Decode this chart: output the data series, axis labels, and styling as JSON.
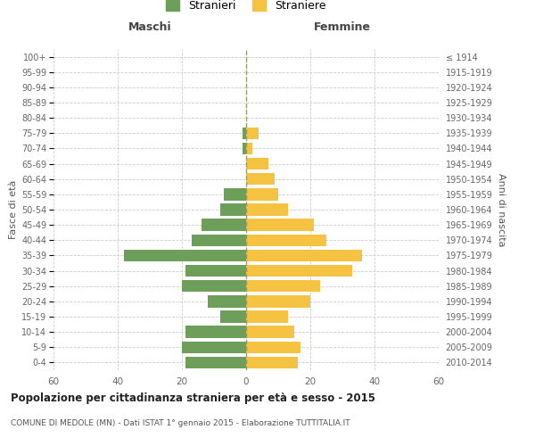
{
  "age_groups": [
    "0-4",
    "5-9",
    "10-14",
    "15-19",
    "20-24",
    "25-29",
    "30-34",
    "35-39",
    "40-44",
    "45-49",
    "50-54",
    "55-59",
    "60-64",
    "65-69",
    "70-74",
    "75-79",
    "80-84",
    "85-89",
    "90-94",
    "95-99",
    "100+"
  ],
  "birth_years": [
    "2010-2014",
    "2005-2009",
    "2000-2004",
    "1995-1999",
    "1990-1994",
    "1985-1989",
    "1980-1984",
    "1975-1979",
    "1970-1974",
    "1965-1969",
    "1960-1964",
    "1955-1959",
    "1950-1954",
    "1945-1949",
    "1940-1944",
    "1935-1939",
    "1930-1934",
    "1925-1929",
    "1920-1924",
    "1915-1919",
    "≤ 1914"
  ],
  "maschi": [
    19,
    20,
    19,
    8,
    12,
    20,
    19,
    38,
    17,
    14,
    8,
    7,
    0,
    0,
    1,
    1,
    0,
    0,
    0,
    0,
    0
  ],
  "femmine": [
    16,
    17,
    15,
    13,
    20,
    23,
    33,
    36,
    25,
    21,
    13,
    10,
    9,
    7,
    2,
    4,
    0,
    0,
    0,
    0,
    0
  ],
  "maschi_color": "#6d9e5a",
  "femmine_color": "#f5c242",
  "bg_color": "#ffffff",
  "grid_color": "#cccccc",
  "title": "Popolazione per cittadinanza straniera per età e sesso - 2015",
  "subtitle": "COMUNE DI MEDOLE (MN) - Dati ISTAT 1° gennaio 2015 - Elaborazione TUTTITALIA.IT",
  "ylabel_left": "Fasce di età",
  "ylabel_right": "Anni di nascita",
  "header_maschi": "Maschi",
  "header_femmine": "Femmine",
  "legend_maschi": "Stranieri",
  "legend_femmine": "Straniere",
  "xlim": 60,
  "dashed_line_color": "#999966"
}
